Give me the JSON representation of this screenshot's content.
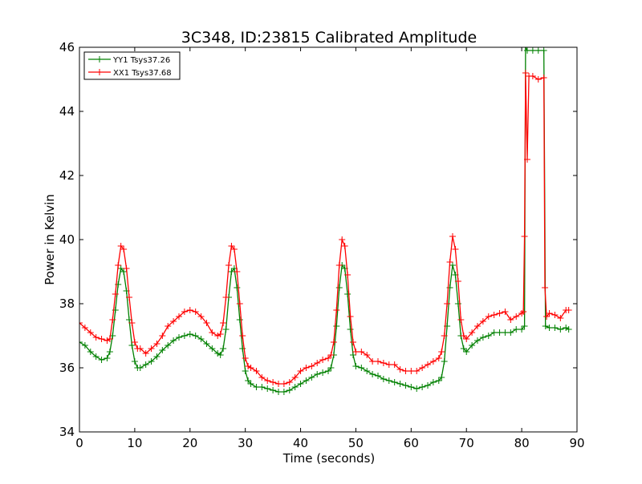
{
  "chart_data": {
    "type": "line",
    "title": "3C348, ID:23815 Calibrated Amplitude",
    "xlabel": "Time (seconds)",
    "ylabel": "Power in Kelvin",
    "xlim": [
      0,
      90
    ],
    "ylim": [
      34,
      46
    ],
    "x_ticks": [
      0,
      10,
      20,
      30,
      40,
      50,
      60,
      70,
      80,
      90
    ],
    "y_ticks": [
      34,
      36,
      38,
      40,
      42,
      44,
      46
    ],
    "grid": false,
    "legend_position": "top-left",
    "marker": "plus",
    "series": [
      {
        "name": "YY1 Tsys37.26",
        "color": "#008000",
        "points": [
          [
            0,
            36.8
          ],
          [
            1,
            36.7
          ],
          [
            2,
            36.5
          ],
          [
            3,
            36.35
          ],
          [
            4,
            36.25
          ],
          [
            5,
            36.3
          ],
          [
            5.5,
            36.5
          ],
          [
            6,
            37.0
          ],
          [
            6.5,
            37.8
          ],
          [
            7,
            38.6
          ],
          [
            7.5,
            39.1
          ],
          [
            8,
            39.0
          ],
          [
            8.5,
            38.4
          ],
          [
            9,
            37.5
          ],
          [
            9.5,
            36.7
          ],
          [
            10,
            36.2
          ],
          [
            10.5,
            36.0
          ],
          [
            11,
            36.0
          ],
          [
            12,
            36.1
          ],
          [
            13,
            36.2
          ],
          [
            14,
            36.35
          ],
          [
            15,
            36.55
          ],
          [
            16,
            36.7
          ],
          [
            17,
            36.85
          ],
          [
            18,
            36.95
          ],
          [
            19,
            37.0
          ],
          [
            20,
            37.05
          ],
          [
            21,
            37.0
          ],
          [
            22,
            36.9
          ],
          [
            23,
            36.75
          ],
          [
            24,
            36.6
          ],
          [
            25,
            36.45
          ],
          [
            25.5,
            36.4
          ],
          [
            26,
            36.6
          ],
          [
            26.5,
            37.2
          ],
          [
            27,
            38.2
          ],
          [
            27.5,
            39.0
          ],
          [
            28,
            39.1
          ],
          [
            28.5,
            38.5
          ],
          [
            29,
            37.5
          ],
          [
            29.5,
            36.6
          ],
          [
            30,
            35.9
          ],
          [
            30.5,
            35.6
          ],
          [
            31,
            35.5
          ],
          [
            32,
            35.4
          ],
          [
            33,
            35.4
          ],
          [
            34,
            35.35
          ],
          [
            35,
            35.3
          ],
          [
            36,
            35.25
          ],
          [
            37,
            35.25
          ],
          [
            38,
            35.3
          ],
          [
            39,
            35.4
          ],
          [
            40,
            35.5
          ],
          [
            41,
            35.6
          ],
          [
            42,
            35.7
          ],
          [
            43,
            35.8
          ],
          [
            44,
            35.85
          ],
          [
            45,
            35.9
          ],
          [
            45.5,
            36.0
          ],
          [
            46,
            36.4
          ],
          [
            46.5,
            37.3
          ],
          [
            47,
            38.5
          ],
          [
            47.5,
            39.2
          ],
          [
            48,
            39.1
          ],
          [
            48.5,
            38.3
          ],
          [
            49,
            37.2
          ],
          [
            49.5,
            36.4
          ],
          [
            50,
            36.05
          ],
          [
            51,
            36.0
          ],
          [
            52,
            35.9
          ],
          [
            53,
            35.8
          ],
          [
            54,
            35.75
          ],
          [
            55,
            35.65
          ],
          [
            56,
            35.6
          ],
          [
            57,
            35.55
          ],
          [
            58,
            35.5
          ],
          [
            59,
            35.45
          ],
          [
            60,
            35.4
          ],
          [
            61,
            35.35
          ],
          [
            62,
            35.4
          ],
          [
            63,
            35.45
          ],
          [
            64,
            35.55
          ],
          [
            65,
            35.6
          ],
          [
            65.5,
            35.7
          ],
          [
            66,
            36.2
          ],
          [
            66.5,
            37.3
          ],
          [
            67,
            38.5
          ],
          [
            67.5,
            39.2
          ],
          [
            68,
            38.9
          ],
          [
            68.5,
            38.0
          ],
          [
            69,
            37.0
          ],
          [
            69.5,
            36.6
          ],
          [
            70,
            36.5
          ],
          [
            71,
            36.7
          ],
          [
            72,
            36.85
          ],
          [
            73,
            36.95
          ],
          [
            74,
            37.0
          ],
          [
            75,
            37.1
          ],
          [
            76,
            37.1
          ],
          [
            77,
            37.1
          ],
          [
            78,
            37.1
          ],
          [
            79,
            37.2
          ],
          [
            80,
            37.2
          ],
          [
            80.5,
            37.3
          ],
          [
            80.7,
            46.0
          ],
          [
            81,
            45.9
          ],
          [
            82,
            45.9
          ],
          [
            83,
            45.9
          ],
          [
            84,
            45.9
          ],
          [
            84.3,
            37.3
          ],
          [
            85,
            37.25
          ],
          [
            86,
            37.25
          ],
          [
            87,
            37.2
          ],
          [
            88,
            37.25
          ],
          [
            88.5,
            37.2
          ]
        ]
      },
      {
        "name": "XX1 Tsys37.68",
        "color": "#ff0000",
        "points": [
          [
            0,
            37.4
          ],
          [
            1,
            37.25
          ],
          [
            2,
            37.1
          ],
          [
            3,
            36.95
          ],
          [
            4,
            36.9
          ],
          [
            5,
            36.85
          ],
          [
            5.5,
            36.9
          ],
          [
            6,
            37.5
          ],
          [
            6.5,
            38.3
          ],
          [
            7,
            39.2
          ],
          [
            7.5,
            39.8
          ],
          [
            8,
            39.7
          ],
          [
            8.5,
            39.1
          ],
          [
            9,
            38.2
          ],
          [
            9.5,
            37.4
          ],
          [
            10,
            36.8
          ],
          [
            10.5,
            36.6
          ],
          [
            11,
            36.6
          ],
          [
            12,
            36.45
          ],
          [
            13,
            36.6
          ],
          [
            14,
            36.75
          ],
          [
            15,
            37.0
          ],
          [
            16,
            37.3
          ],
          [
            17,
            37.45
          ],
          [
            18,
            37.6
          ],
          [
            19,
            37.75
          ],
          [
            20,
            37.8
          ],
          [
            21,
            37.75
          ],
          [
            22,
            37.6
          ],
          [
            23,
            37.4
          ],
          [
            24,
            37.1
          ],
          [
            25,
            37.0
          ],
          [
            25.5,
            37.05
          ],
          [
            26,
            37.4
          ],
          [
            26.5,
            38.2
          ],
          [
            27,
            39.2
          ],
          [
            27.5,
            39.8
          ],
          [
            28,
            39.7
          ],
          [
            28.5,
            39.0
          ],
          [
            29,
            38.0
          ],
          [
            29.5,
            37.0
          ],
          [
            30,
            36.3
          ],
          [
            30.5,
            36.05
          ],
          [
            31,
            36.0
          ],
          [
            32,
            35.9
          ],
          [
            33,
            35.7
          ],
          [
            34,
            35.6
          ],
          [
            35,
            35.55
          ],
          [
            36,
            35.5
          ],
          [
            37,
            35.5
          ],
          [
            38,
            35.55
          ],
          [
            39,
            35.7
          ],
          [
            40,
            35.9
          ],
          [
            41,
            36.0
          ],
          [
            42,
            36.05
          ],
          [
            43,
            36.15
          ],
          [
            44,
            36.25
          ],
          [
            45,
            36.3
          ],
          [
            45.5,
            36.4
          ],
          [
            46,
            36.8
          ],
          [
            46.5,
            37.8
          ],
          [
            47,
            39.2
          ],
          [
            47.5,
            40.0
          ],
          [
            48,
            39.8
          ],
          [
            48.5,
            38.9
          ],
          [
            49,
            37.6
          ],
          [
            49.5,
            36.8
          ],
          [
            50,
            36.5
          ],
          [
            51,
            36.5
          ],
          [
            52,
            36.4
          ],
          [
            53,
            36.2
          ],
          [
            54,
            36.2
          ],
          [
            55,
            36.15
          ],
          [
            56,
            36.1
          ],
          [
            57,
            36.1
          ],
          [
            58,
            35.95
          ],
          [
            59,
            35.9
          ],
          [
            60,
            35.9
          ],
          [
            61,
            35.9
          ],
          [
            62,
            36.0
          ],
          [
            63,
            36.1
          ],
          [
            64,
            36.2
          ],
          [
            65,
            36.3
          ],
          [
            65.5,
            36.5
          ],
          [
            66,
            37.0
          ],
          [
            66.5,
            38.0
          ],
          [
            67,
            39.3
          ],
          [
            67.5,
            40.1
          ],
          [
            68,
            39.7
          ],
          [
            68.5,
            38.7
          ],
          [
            69,
            37.5
          ],
          [
            69.5,
            37.0
          ],
          [
            70,
            36.9
          ],
          [
            71,
            37.1
          ],
          [
            72,
            37.3
          ],
          [
            73,
            37.45
          ],
          [
            74,
            37.6
          ],
          [
            75,
            37.65
          ],
          [
            76,
            37.7
          ],
          [
            77,
            37.75
          ],
          [
            78,
            37.5
          ],
          [
            79,
            37.6
          ],
          [
            80,
            37.7
          ],
          [
            80.3,
            37.75
          ],
          [
            80.5,
            40.1
          ],
          [
            80.7,
            45.2
          ],
          [
            81,
            42.5
          ],
          [
            81.3,
            45.1
          ],
          [
            82,
            45.1
          ],
          [
            83,
            45.0
          ],
          [
            84,
            45.05
          ],
          [
            84.2,
            38.5
          ],
          [
            84.5,
            37.6
          ],
          [
            85,
            37.7
          ],
          [
            86,
            37.65
          ],
          [
            87,
            37.55
          ],
          [
            88,
            37.8
          ],
          [
            88.5,
            37.8
          ]
        ]
      }
    ]
  }
}
